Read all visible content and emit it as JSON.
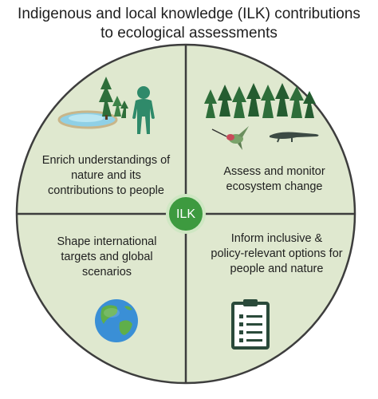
{
  "title": {
    "line1": "Indigenous and local knowledge (ILK) contributions",
    "line2": "to ecological assessments"
  },
  "center": {
    "label": "ILK"
  },
  "quadrants": {
    "top_left": {
      "line1": "Enrich understandings of",
      "line2": "nature and its",
      "line3": "contributions to people"
    },
    "top_right": {
      "line1": "Assess and monitor",
      "line2": "ecosystem change"
    },
    "bottom_left": {
      "line1": "Shape international",
      "line2": "targets and global",
      "line3": "scenarios"
    },
    "bottom_right": {
      "line1": "Inform inclusive &",
      "line2": "policy-relevant options for",
      "line3": "people and nature"
    }
  },
  "icons": [
    "lake-with-trees-icon",
    "person-icon",
    "forest-icon",
    "hummingbird-icon",
    "crocodile-icon",
    "globe-icon",
    "clipboard-icon"
  ],
  "colors": {
    "circle_fill": "#dfe8cf",
    "circle_stroke": "#3d3d3d",
    "center_fill": "#3d9a3f",
    "center_stroke": "#cfe7c3",
    "tree_green": "#2e6e3a",
    "person_green": "#2f8a6a",
    "lake_blue": "#8fd0e6"
  }
}
